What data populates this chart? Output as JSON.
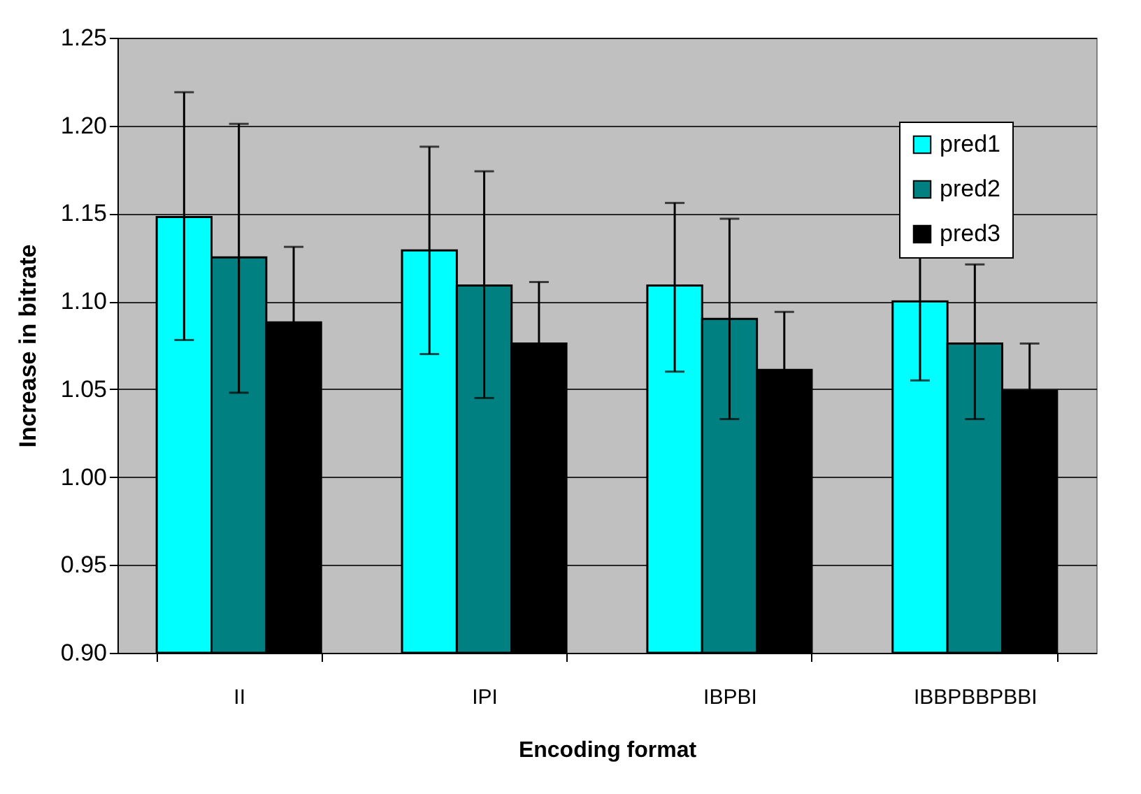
{
  "chart_data": {
    "type": "bar",
    "xlabel": "Encoding format",
    "ylabel": "Increase in bitrate",
    "categories": [
      "II",
      "IPI",
      "IBPBI",
      "IBBPBBPBBI"
    ],
    "series": [
      {
        "name": "pred1",
        "color": "#00ffff",
        "values": [
          1.148,
          1.129,
          1.109,
          1.1
        ],
        "errors": [
          [
            1.078,
            1.219
          ],
          [
            1.07,
            1.188
          ],
          [
            1.06,
            1.156
          ],
          [
            1.055,
            1.145
          ]
        ]
      },
      {
        "name": "pred2",
        "color": "#008080",
        "values": [
          1.125,
          1.109,
          1.09,
          1.076
        ],
        "errors": [
          [
            1.048,
            1.201
          ],
          [
            1.045,
            1.174
          ],
          [
            1.033,
            1.147
          ],
          [
            1.033,
            1.121
          ]
        ]
      },
      {
        "name": "pred3",
        "color": "#000000",
        "values": [
          1.088,
          1.076,
          1.061,
          1.049
        ],
        "errors": [
          0.043,
          0.035,
          0.033,
          0.027
        ]
      }
    ],
    "ylim": [
      0.9,
      1.25
    ],
    "yticks": [
      {
        "value": 0.9,
        "label": "0.90"
      },
      {
        "value": 0.95,
        "label": "0.95"
      },
      {
        "value": 1.0,
        "label": "1.00"
      },
      {
        "value": 1.05,
        "label": "1.05"
      },
      {
        "value": 1.1,
        "label": "1.10"
      },
      {
        "value": 1.15,
        "label": "1.15"
      },
      {
        "value": 1.2,
        "label": "1.20"
      },
      {
        "value": 1.25,
        "label": "1.25"
      }
    ],
    "grid": "y",
    "legend": "top right"
  }
}
